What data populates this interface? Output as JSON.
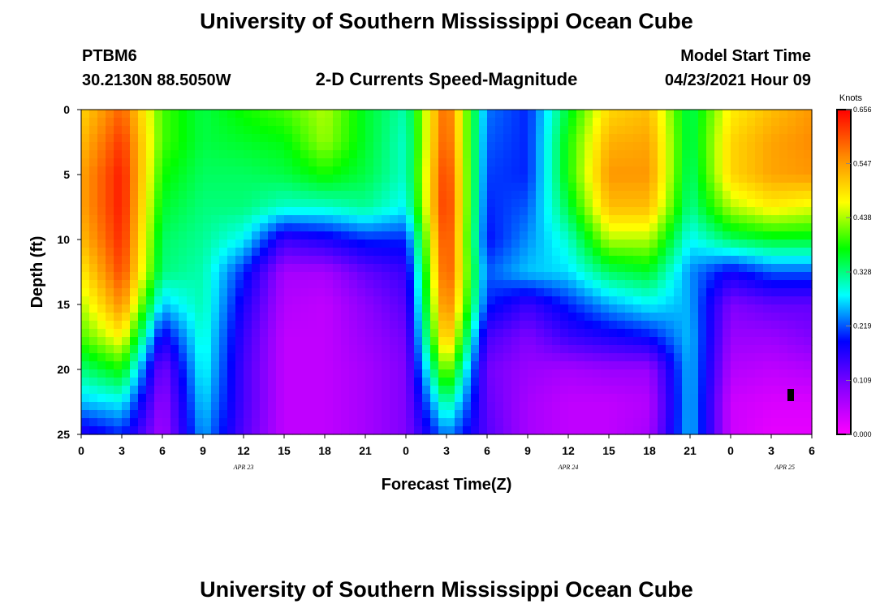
{
  "header": {
    "title_top": "University of Southern Mississippi Ocean Cube",
    "title_bottom": "University of Southern Mississippi Ocean Cube",
    "station": "PTBM6",
    "position": "30.2130N  88.5050W",
    "subtitle": "2-D Currents Speed-Magnitude",
    "model_start_label": "Model Start Time",
    "model_start_value": "04/23/2021 Hour 09"
  },
  "chart_data": {
    "type": "heatmap",
    "title": "2-D Currents Speed-Magnitude",
    "xlabel": "Forecast Time(Z)",
    "ylabel": "Depth (ft)",
    "x_tick_labels": [
      "0",
      "3",
      "6",
      "9",
      "12",
      "15",
      "18",
      "21",
      "0",
      "3",
      "6",
      "9",
      "12",
      "15",
      "18",
      "21",
      "0",
      "3",
      "6"
    ],
    "x_hours_from_apr23_00z": [
      0,
      3,
      6,
      9,
      12,
      15,
      18,
      21,
      24,
      27,
      30,
      33,
      36,
      39,
      42,
      45,
      48,
      51,
      54
    ],
    "xlim_hours": [
      0,
      54
    ],
    "date_labels": [
      {
        "text": "APR 23",
        "hour": 12
      },
      {
        "text": "APR 24",
        "hour": 36
      },
      {
        "text": "APR 25",
        "hour": 52
      }
    ],
    "y_ticks": [
      "0",
      "5",
      "10",
      "15",
      "20",
      "25"
    ],
    "y_tick_values": [
      0,
      5,
      10,
      15,
      20,
      25
    ],
    "ylim_ft": [
      0,
      25
    ],
    "y_inverted": true,
    "colorbar": {
      "unit": "Knots",
      "min": 0.0,
      "max": 0.656,
      "tick_labels": [
        "0.000",
        "0.109",
        "0.219",
        "0.328",
        "0.438",
        "0.547",
        "0.656"
      ],
      "tick_values": [
        0.0,
        0.109,
        0.219,
        0.328,
        0.438,
        0.547,
        0.656
      ],
      "colormap": [
        "#ff00ff",
        "#8800ff",
        "#0000ff",
        "#00ffff",
        "#00ff00",
        "#ffff00",
        "#ff8800",
        "#ff0000"
      ]
    },
    "grid_hours": [
      0,
      3,
      6,
      9,
      12,
      15,
      18,
      21,
      24,
      27,
      30,
      33,
      36,
      39,
      42,
      45,
      48,
      51,
      54
    ],
    "grid_depths_ft": [
      0,
      2.5,
      5,
      7.5,
      10,
      12.5,
      15,
      17.5,
      20,
      22.5,
      25
    ],
    "speed_knots": [
      [
        0.5,
        0.59,
        0.4,
        0.35,
        0.38,
        0.4,
        0.44,
        0.36,
        0.31,
        0.6,
        0.23,
        0.2,
        0.36,
        0.5,
        0.52,
        0.34,
        0.48,
        0.52,
        0.55
      ],
      [
        0.52,
        0.62,
        0.4,
        0.35,
        0.36,
        0.37,
        0.43,
        0.36,
        0.3,
        0.61,
        0.22,
        0.2,
        0.38,
        0.53,
        0.54,
        0.34,
        0.5,
        0.54,
        0.56
      ],
      [
        0.54,
        0.64,
        0.38,
        0.34,
        0.34,
        0.35,
        0.38,
        0.35,
        0.3,
        0.63,
        0.21,
        0.2,
        0.38,
        0.55,
        0.55,
        0.33,
        0.5,
        0.54,
        0.55
      ],
      [
        0.54,
        0.64,
        0.36,
        0.33,
        0.33,
        0.3,
        0.3,
        0.32,
        0.28,
        0.64,
        0.2,
        0.22,
        0.35,
        0.52,
        0.52,
        0.32,
        0.44,
        0.48,
        0.46
      ],
      [
        0.52,
        0.63,
        0.34,
        0.32,
        0.28,
        0.15,
        0.17,
        0.2,
        0.2,
        0.63,
        0.19,
        0.24,
        0.3,
        0.44,
        0.44,
        0.28,
        0.34,
        0.36,
        0.36
      ],
      [
        0.48,
        0.61,
        0.33,
        0.31,
        0.2,
        0.07,
        0.07,
        0.12,
        0.15,
        0.62,
        0.22,
        0.26,
        0.27,
        0.34,
        0.36,
        0.24,
        0.18,
        0.22,
        0.22
      ],
      [
        0.44,
        0.56,
        0.26,
        0.31,
        0.17,
        0.06,
        0.05,
        0.09,
        0.13,
        0.59,
        0.2,
        0.15,
        0.2,
        0.25,
        0.28,
        0.25,
        0.1,
        0.12,
        0.12
      ],
      [
        0.4,
        0.48,
        0.17,
        0.3,
        0.15,
        0.05,
        0.05,
        0.08,
        0.11,
        0.54,
        0.14,
        0.1,
        0.15,
        0.17,
        0.19,
        0.26,
        0.08,
        0.08,
        0.1
      ],
      [
        0.33,
        0.38,
        0.1,
        0.29,
        0.14,
        0.05,
        0.05,
        0.07,
        0.1,
        0.44,
        0.11,
        0.08,
        0.07,
        0.08,
        0.08,
        0.26,
        0.06,
        0.05,
        0.06
      ],
      [
        0.26,
        0.28,
        0.08,
        0.27,
        0.14,
        0.05,
        0.05,
        0.07,
        0.1,
        0.33,
        0.12,
        0.07,
        0.05,
        0.05,
        0.06,
        0.26,
        0.04,
        0.03,
        0.03
      ],
      [
        0.16,
        0.2,
        0.07,
        0.25,
        0.13,
        0.05,
        0.05,
        0.07,
        0.1,
        0.24,
        0.13,
        0.07,
        0.05,
        0.05,
        0.07,
        0.26,
        0.04,
        0.02,
        0.02
      ]
    ]
  }
}
